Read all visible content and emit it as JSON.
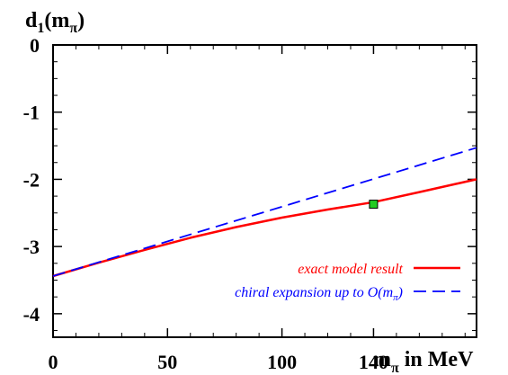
{
  "chart_data": {
    "type": "line",
    "xlim": [
      0,
      185
    ],
    "ylim": [
      -4.35,
      0
    ],
    "x_ticks": [
      0,
      50,
      100,
      140
    ],
    "y_ticks": [
      0,
      -1,
      -2,
      -3,
      -4
    ],
    "x_tick_labels": [
      "0",
      "50",
      "100",
      "140"
    ],
    "y_tick_labels": [
      "0",
      "-1",
      "-2",
      "-3",
      "-4"
    ],
    "ylabel": {
      "base": "d",
      "sub1": "1",
      "mid": "(m",
      "sub2": "π",
      "end": ")"
    },
    "xlabel": {
      "base": "m",
      "sub": "π",
      "end": " in MeV"
    },
    "grid": false,
    "legend_position": "bottom-right",
    "series": [
      {
        "name": "exact model result",
        "style": "solid",
        "color": "#ff0000",
        "x": [
          0,
          20,
          40,
          60,
          80,
          100,
          120,
          140,
          160,
          185
        ],
        "y": [
          -3.44,
          -3.24,
          -3.05,
          -2.87,
          -2.71,
          -2.57,
          -2.45,
          -2.34,
          -2.19,
          -2.0
        ]
      },
      {
        "name_prefix": "chiral expansion up to O(m",
        "name_sub": "π",
        "name_suffix": ")",
        "style": "dashed",
        "color": "#0000ff",
        "x": [
          0,
          185
        ],
        "y": [
          -3.44,
          -1.53
        ]
      }
    ],
    "marker": {
      "x": 140,
      "y": -2.37,
      "color": "#22cc22",
      "shape": "square"
    }
  }
}
